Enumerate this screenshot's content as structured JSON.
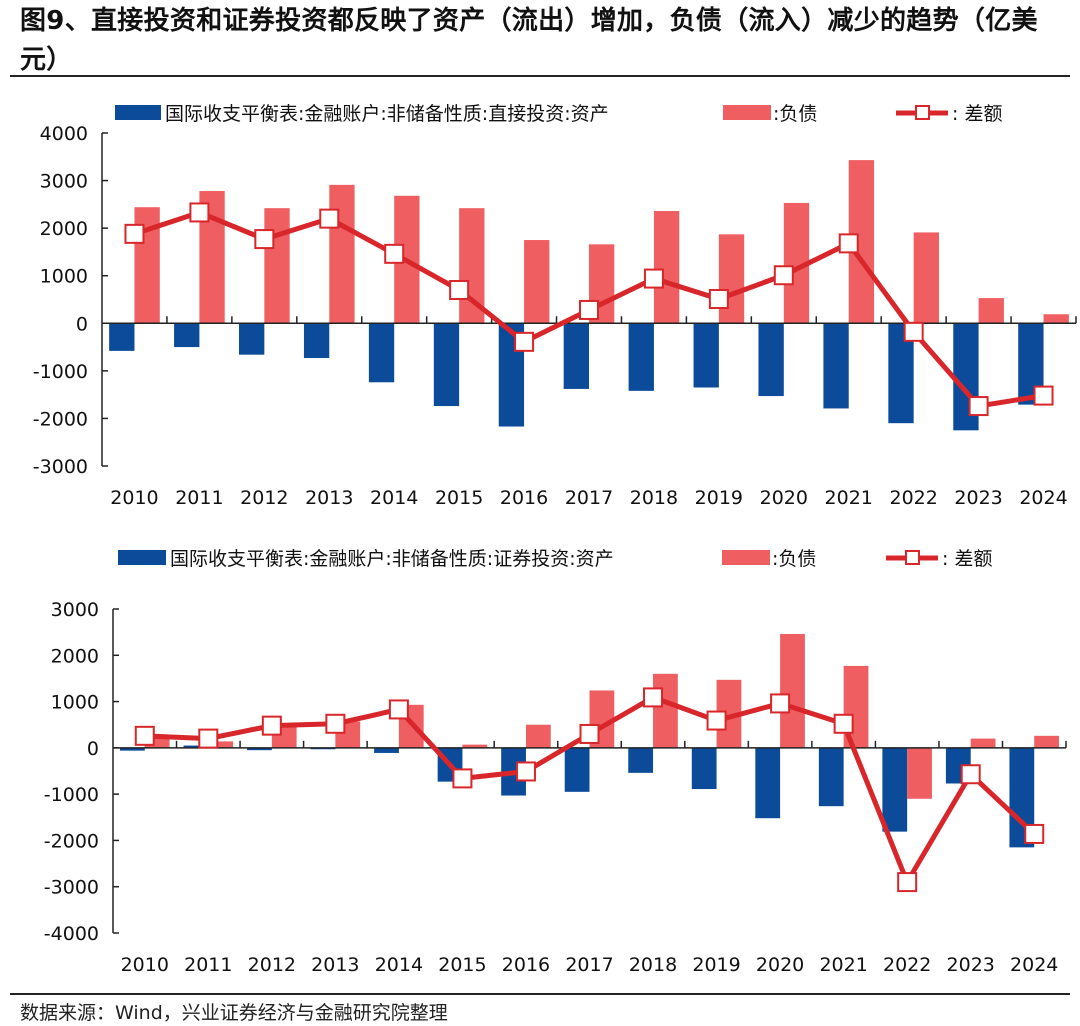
{
  "figure": {
    "title": "图9、直接投资和证券投资都反映了资产（流出）增加，负债（流入）减少的趋势（亿美元）",
    "source": "数据来源：Wind，兴业证券经济与金融研究院整理"
  },
  "colors": {
    "assets": "#0b4b9a",
    "liabilities": "#ef5f62",
    "net": "#d8262a",
    "marker_fill": "#ffffff",
    "axis": "#222222"
  },
  "chart_data": [
    {
      "type": "bar",
      "title": "直接投资",
      "xlabel": "",
      "ylabel": "",
      "categories": [
        "2010",
        "2011",
        "2012",
        "2013",
        "2014",
        "2015",
        "2016",
        "2017",
        "2018",
        "2019",
        "2020",
        "2021",
        "2022",
        "2023",
        "2024"
      ],
      "ylim": [
        -3000,
        4000
      ],
      "yticks": [
        "4000",
        "3000",
        "2000",
        "1000",
        "0",
        "-1000",
        "-2000",
        "-3000"
      ],
      "ytick_values": [
        4000,
        3000,
        2000,
        1000,
        0,
        -1000,
        -2000,
        -3000
      ],
      "grid": false,
      "legend_position": "top",
      "series": [
        {
          "name": "国际收支平衡表:金融账户:非储备性质:直接投资:资产",
          "kind": "bar",
          "values": [
            -580,
            -500,
            -660,
            -730,
            -1240,
            -1740,
            -2170,
            -1380,
            -1420,
            -1350,
            -1530,
            -1790,
            -2100,
            -2250,
            -1710
          ]
        },
        {
          "name": ":负债",
          "kind": "bar",
          "values": [
            2440,
            2780,
            2420,
            2910,
            2680,
            2420,
            1750,
            1660,
            2360,
            1870,
            2530,
            3430,
            1910,
            530,
            190
          ]
        },
        {
          "name": ":  差额",
          "kind": "line",
          "values": [
            1880,
            2330,
            1770,
            2200,
            1460,
            700,
            -390,
            280,
            940,
            510,
            1010,
            1680,
            -180,
            -1740,
            -1520
          ]
        }
      ]
    },
    {
      "type": "bar",
      "title": "证券投资",
      "xlabel": "",
      "ylabel": "",
      "categories": [
        "2010",
        "2011",
        "2012",
        "2013",
        "2014",
        "2015",
        "2016",
        "2017",
        "2018",
        "2019",
        "2020",
        "2021",
        "2022",
        "2023",
        "2024"
      ],
      "ylim": [
        -4000,
        3000
      ],
      "yticks": [
        "3000",
        "2000",
        "1000",
        "0",
        "-1000",
        "-2000",
        "-3000",
        "-4000"
      ],
      "ytick_values": [
        3000,
        2000,
        1000,
        0,
        -1000,
        -2000,
        -3000,
        -4000
      ],
      "grid": false,
      "legend_position": "top",
      "series": [
        {
          "name": "国际收支平衡表:金融账户:非储备性质:证券投资:资产",
          "kind": "bar",
          "values": [
            -60,
            50,
            -50,
            -30,
            -110,
            -730,
            -1030,
            -950,
            -540,
            -890,
            -1520,
            -1260,
            -1810,
            -770,
            -2150
          ]
        },
        {
          "name": ":负债",
          "kind": "bar",
          "values": [
            240,
            140,
            480,
            570,
            930,
            70,
            500,
            1240,
            1600,
            1470,
            2460,
            1770,
            -1100,
            200,
            260
          ]
        },
        {
          "name": ":  差额",
          "kind": "line",
          "values": [
            260,
            200,
            480,
            520,
            830,
            -660,
            -510,
            300,
            1090,
            590,
            960,
            520,
            -2900,
            -570,
            -1860
          ]
        }
      ]
    }
  ]
}
